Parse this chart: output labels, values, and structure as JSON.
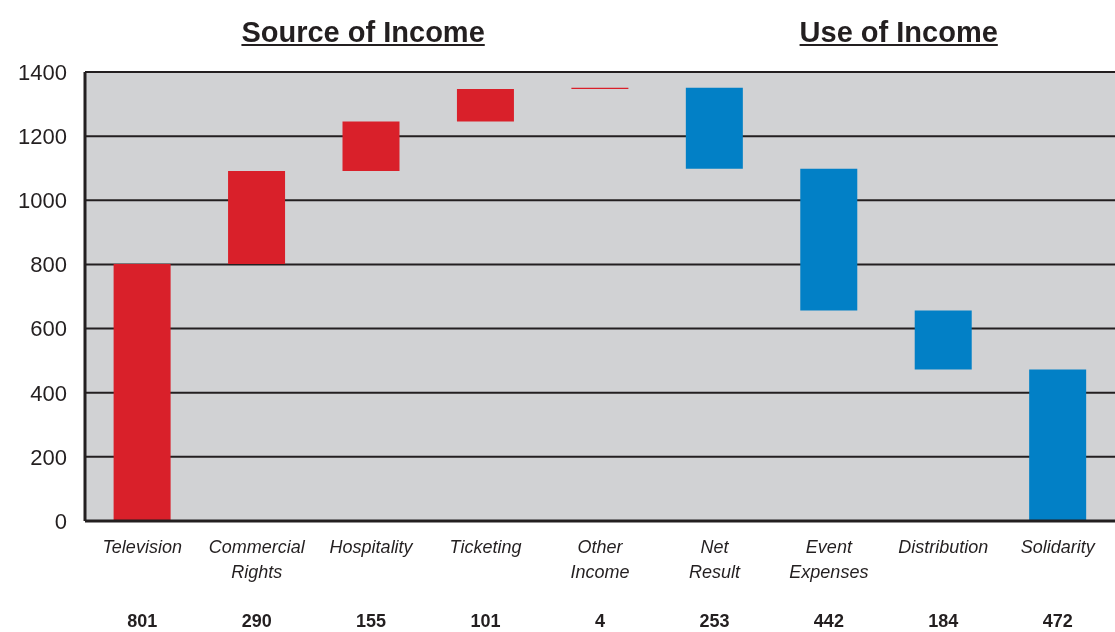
{
  "chart_data": {
    "type": "bar",
    "annotations": [
      "Source of Income",
      "Use of Income"
    ],
    "categories": [
      "Television",
      "Commercial Rights",
      "Hospitality",
      "Ticketing",
      "Other Income",
      "Net Result",
      "Event Expenses",
      "Distribution",
      "Solidarity"
    ],
    "values": [
      801,
      290,
      155,
      101,
      4,
      253,
      442,
      184,
      472
    ],
    "base": [
      0,
      801,
      1091,
      1246,
      1347,
      1098,
      656,
      472,
      0
    ],
    "colors": [
      "#d9202a",
      "#d9202a",
      "#d9202a",
      "#d9202a",
      "#d9202a",
      "#0280c6",
      "#0280c6",
      "#0280c6",
      "#0280c6"
    ],
    "ylim": [
      0,
      1400
    ],
    "yticks": [
      0,
      200,
      400,
      600,
      800,
      1000,
      1200,
      1400
    ],
    "grid": "y",
    "data_labels": true
  }
}
